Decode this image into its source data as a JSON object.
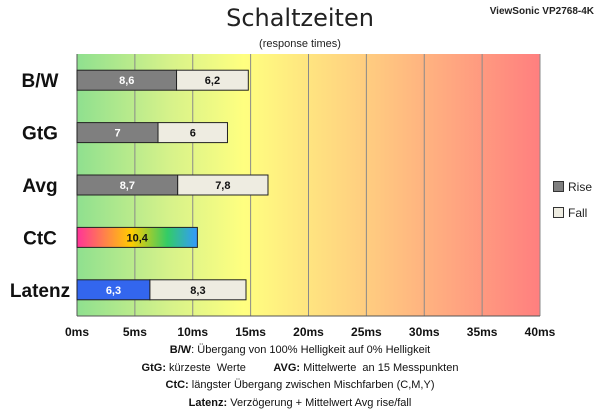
{
  "title": "Schaltzeiten",
  "subtitle": "(response times)",
  "model": "ViewSonic VP2768-4K",
  "legend": {
    "rise": "Rise",
    "fall": "Fall"
  },
  "colors": {
    "rise": "#7f7f7f",
    "fall": "#eeece1",
    "ctc_gradient": [
      "#ff3399",
      "#ffcc00",
      "#33cc66",
      "#3399ff"
    ],
    "latenz_rise": "#3366ee"
  },
  "notes": [
    {
      "key": "B/W",
      "text": ":  Übergang von 100% Helligkeit auf 0% Helligkeit"
    },
    {
      "key": "GtG:",
      "text": " kürzeste  Werte         ",
      "key2": "AVG:",
      "text2": " Mittelwerte  an 15 Messpunkten"
    },
    {
      "key": "CtC:",
      "text": " längster Übergang  zwischen Mischfarben  (C,M,Y)"
    },
    {
      "key": "Latenz:",
      "text": " Verzögerung  + Mittelwert  Avg rise/fall"
    }
  ],
  "chart_data": {
    "type": "bar",
    "orientation": "horizontal",
    "stacked": true,
    "categories": [
      "B/W",
      "GtG",
      "Avg",
      "CtC",
      "Latenz"
    ],
    "series": [
      {
        "name": "Rise",
        "values": [
          8.6,
          7,
          8.7,
          10.4,
          6.3
        ],
        "labels": [
          "8,6",
          "7",
          "8,7",
          "10,4",
          "6,3"
        ]
      },
      {
        "name": "Fall",
        "values": [
          6.2,
          6,
          7.8,
          null,
          8.3
        ],
        "labels": [
          "6,2",
          "6",
          "7,8",
          "",
          "8,3"
        ]
      }
    ],
    "xlim": [
      0,
      40
    ],
    "xticks": [
      0,
      5,
      10,
      15,
      20,
      25,
      30,
      35,
      40
    ],
    "xtick_labels": [
      "0ms",
      "5ms",
      "10ms",
      "15ms",
      "20ms",
      "25ms",
      "30ms",
      "35ms",
      "40ms"
    ],
    "background": "green-yellow-red gradient",
    "grid": true,
    "legend_position": "right"
  }
}
